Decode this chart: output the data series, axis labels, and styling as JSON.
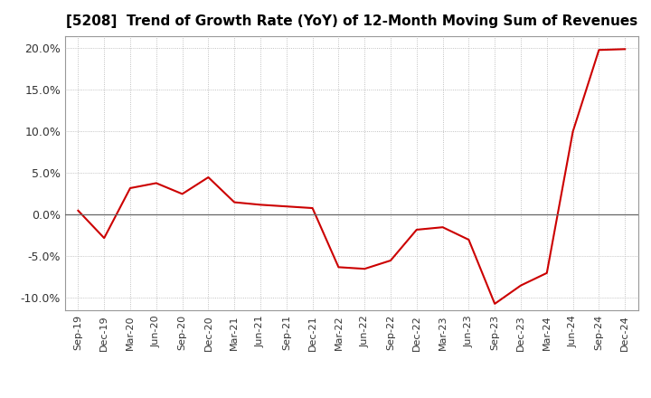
{
  "title": "[5208]  Trend of Growth Rate (YoY) of 12-Month Moving Sum of Revenues",
  "line_color": "#cc0000",
  "background_color": "#ffffff",
  "grid_color": "#b0b0b0",
  "ylim": [
    -0.115,
    0.215
  ],
  "yticks": [
    -0.1,
    -0.05,
    0.0,
    0.05,
    0.1,
    0.15,
    0.2
  ],
  "x_labels": [
    "Sep-19",
    "Dec-19",
    "Mar-20",
    "Jun-20",
    "Sep-20",
    "Dec-20",
    "Mar-21",
    "Jun-21",
    "Sep-21",
    "Dec-21",
    "Mar-22",
    "Jun-22",
    "Sep-22",
    "Dec-22",
    "Mar-23",
    "Jun-23",
    "Sep-23",
    "Dec-23",
    "Mar-24",
    "Jun-24",
    "Sep-24",
    "Dec-24"
  ],
  "y_values": [
    0.005,
    -0.028,
    0.032,
    0.038,
    0.025,
    0.045,
    0.015,
    0.012,
    0.01,
    0.008,
    -0.063,
    -0.065,
    -0.055,
    -0.018,
    -0.015,
    -0.03,
    -0.107,
    -0.085,
    -0.07,
    0.1,
    0.198,
    0.199
  ],
  "title_fontsize": 11,
  "tick_fontsize": 9,
  "xtick_fontsize": 8
}
